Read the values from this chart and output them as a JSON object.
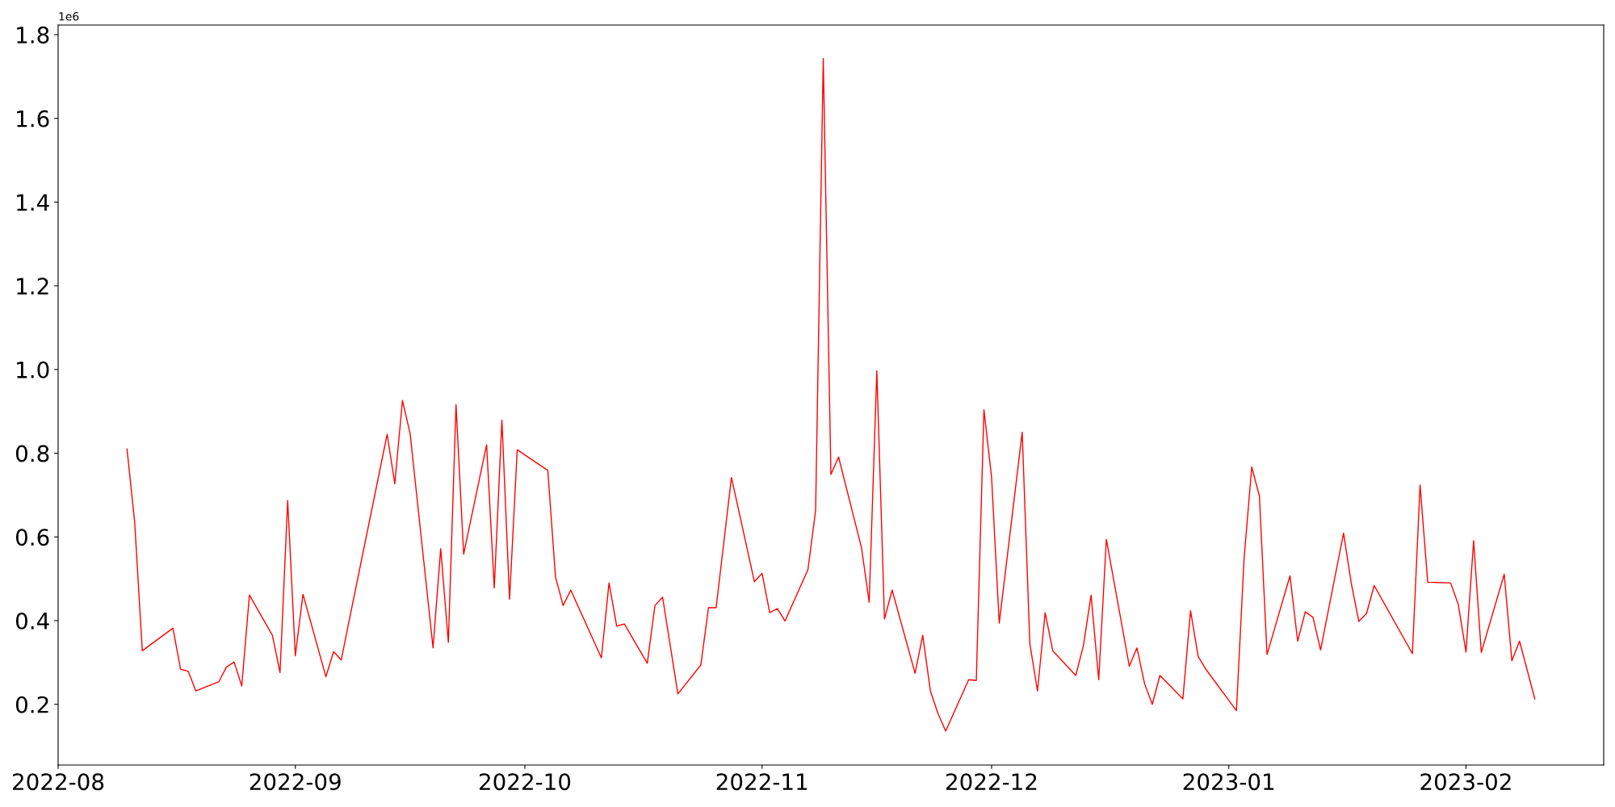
{
  "chart_data": {
    "type": "line",
    "annotations": [
      "1e6"
    ],
    "x": [
      "2022-08-10",
      "2022-08-11",
      "2022-08-12",
      "2022-08-16",
      "2022-08-17",
      "2022-08-18",
      "2022-08-19",
      "2022-08-22",
      "2022-08-23",
      "2022-08-24",
      "2022-08-25",
      "2022-08-26",
      "2022-08-29",
      "2022-08-30",
      "2022-08-31",
      "2022-09-01",
      "2022-09-02",
      "2022-09-05",
      "2022-09-06",
      "2022-09-07",
      "2022-09-08",
      "2022-09-13",
      "2022-09-14",
      "2022-09-15",
      "2022-09-16",
      "2022-09-19",
      "2022-09-20",
      "2022-09-21",
      "2022-09-22",
      "2022-09-23",
      "2022-09-26",
      "2022-09-27",
      "2022-09-28",
      "2022-09-29",
      "2022-09-30",
      "2022-10-04",
      "2022-10-05",
      "2022-10-06",
      "2022-10-07",
      "2022-10-11",
      "2022-10-12",
      "2022-10-13",
      "2022-10-14",
      "2022-10-17",
      "2022-10-18",
      "2022-10-19",
      "2022-10-21",
      "2022-10-24",
      "2022-10-25",
      "2022-10-26",
      "2022-10-28",
      "2022-10-31",
      "2022-11-01",
      "2022-11-02",
      "2022-11-03",
      "2022-11-04",
      "2022-11-07",
      "2022-11-08",
      "2022-11-09",
      "2022-11-10",
      "2022-11-11",
      "2022-11-14",
      "2022-11-15",
      "2022-11-16",
      "2022-11-17",
      "2022-11-18",
      "2022-11-21",
      "2022-11-22",
      "2022-11-23",
      "2022-11-24",
      "2022-11-25",
      "2022-11-28",
      "2022-11-29",
      "2022-11-30",
      "2022-12-01",
      "2022-12-02",
      "2022-12-05",
      "2022-12-06",
      "2022-12-07",
      "2022-12-08",
      "2022-12-09",
      "2022-12-12",
      "2022-12-13",
      "2022-12-14",
      "2022-12-15",
      "2022-12-16",
      "2022-12-19",
      "2022-12-20",
      "2022-12-21",
      "2022-12-22",
      "2022-12-23",
      "2022-12-26",
      "2022-12-27",
      "2022-12-28",
      "2022-12-29",
      "2023-01-02",
      "2023-01-03",
      "2023-01-04",
      "2023-01-05",
      "2023-01-06",
      "2023-01-09",
      "2023-01-10",
      "2023-01-11",
      "2023-01-12",
      "2023-01-13",
      "2023-01-16",
      "2023-01-17",
      "2023-01-18",
      "2023-01-19",
      "2023-01-20",
      "2023-01-25",
      "2023-01-26",
      "2023-01-27",
      "2023-01-30",
      "2023-01-31",
      "2023-02-01",
      "2023-02-02",
      "2023-02-03",
      "2023-02-06",
      "2023-02-07",
      "2023-02-08",
      "2023-02-10"
    ],
    "series": [
      {
        "color": "#ff0000",
        "values": [
          0.81,
          0.636,
          0.328,
          0.382,
          0.284,
          0.279,
          0.232,
          0.254,
          0.289,
          0.301,
          0.244,
          0.461,
          0.365,
          0.276,
          0.687,
          0.316,
          0.463,
          0.266,
          0.326,
          0.306,
          0.397,
          0.845,
          0.727,
          0.926,
          0.847,
          0.335,
          0.572,
          0.348,
          0.916,
          0.559,
          0.82,
          0.478,
          0.879,
          0.451,
          0.808,
          0.759,
          0.505,
          0.436,
          0.473,
          0.311,
          0.49,
          0.387,
          0.392,
          0.298,
          0.436,
          0.456,
          0.225,
          0.294,
          0.431,
          0.431,
          0.742,
          0.493,
          0.513,
          0.419,
          0.429,
          0.399,
          0.522,
          0.663,
          1.743,
          0.749,
          0.791,
          0.574,
          0.444,
          0.997,
          0.404,
          0.473,
          0.274,
          0.365,
          0.232,
          0.178,
          0.136,
          0.259,
          0.257,
          0.904,
          0.742,
          0.394,
          0.85,
          0.345,
          0.232,
          0.419,
          0.328,
          0.269,
          0.34,
          0.461,
          0.259,
          0.594,
          0.291,
          0.335,
          0.249,
          0.2,
          0.269,
          0.213,
          0.424,
          0.314,
          0.284,
          0.185,
          0.548,
          0.767,
          0.698,
          0.319,
          0.507,
          0.351,
          0.421,
          0.408,
          0.33,
          0.609,
          0.49,
          0.398,
          0.417,
          0.484,
          0.321,
          0.724,
          0.492,
          0.49,
          0.438,
          0.325,
          0.591,
          0.324,
          0.511,
          0.304,
          0.351,
          0.213
        ]
      }
    ],
    "xlim": [
      "2022-08-01",
      "2023-02-19"
    ],
    "xticks": [
      {
        "value": "2022-08-01",
        "label": "2022-08"
      },
      {
        "value": "2022-09-01",
        "label": "2022-09"
      },
      {
        "value": "2022-10-01",
        "label": "2022-10"
      },
      {
        "value": "2022-11-01",
        "label": "2022-11"
      },
      {
        "value": "2022-12-01",
        "label": "2022-12"
      },
      {
        "value": "2023-01-01",
        "label": "2023-01"
      },
      {
        "value": "2023-02-01",
        "label": "2023-02"
      }
    ],
    "ylim": [
      0.055,
      1.823
    ],
    "yticks": [
      0.2,
      0.4,
      0.6,
      0.8,
      {
        "value": 1.0,
        "label": "1.0"
      },
      1.2,
      1.4,
      1.6,
      1.8
    ],
    "grid": false,
    "legend": false
  }
}
